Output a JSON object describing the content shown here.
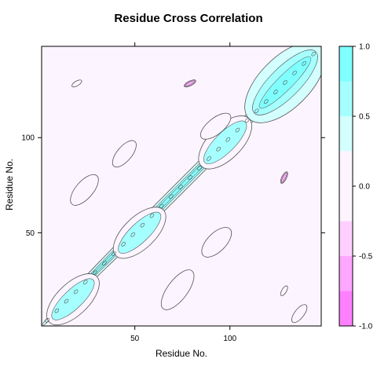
{
  "chart_data": {
    "type": "contour",
    "title": "Residue Cross Correlation",
    "xlabel": "Residue No.",
    "ylabel": "Residue No.",
    "xlim": [
      1,
      148
    ],
    "ylim": [
      1,
      148
    ],
    "xticks": [
      50,
      100
    ],
    "yticks": [
      50,
      100
    ],
    "colorbar": {
      "breaks": [
        -1.0,
        -0.75,
        -0.5,
        -0.25,
        0.25,
        0.5,
        0.75,
        1.0
      ],
      "colors": [
        "#ff80ff",
        "#ffa6ff",
        "#ffd0ff",
        "#fcf5ff",
        "#d4ffff",
        "#a6ffff",
        "#80ffff"
      ],
      "ticks": [
        -1.0,
        -0.5,
        0.0,
        0.5,
        1.0
      ],
      "tick_labels": [
        "-1.0",
        "-0.5",
        "0.0",
        "0.5",
        "1.0"
      ]
    },
    "background_value": 0.0,
    "positive_regions": [
      {
        "name": "diagonal",
        "x": [
          1,
          148
        ],
        "y": [
          1,
          148
        ],
        "level": 1.0
      },
      {
        "name": "anti-diagonal-15",
        "x": [
          5,
          30
        ],
        "y": [
          3,
          27
        ],
        "level": 0.5
      },
      {
        "name": "anti-diagonal-50",
        "x": [
          40,
          65
        ],
        "y": [
          38,
          62
        ],
        "level": 0.5
      },
      {
        "name": "anti-diagonal-100",
        "x": [
          85,
          110
        ],
        "y": [
          85,
          110
        ],
        "level": 0.5
      },
      {
        "name": "upper-right-band",
        "x": [
          110,
          148
        ],
        "y": [
          110,
          148
        ],
        "level": 0.75
      },
      {
        "name": "cluster-18-75",
        "x": [
          17,
          30
        ],
        "y": [
          65,
          80
        ],
        "level": 0.25
      },
      {
        "name": "cluster-40-93",
        "x": [
          39,
          50
        ],
        "y": [
          85,
          98
        ],
        "level": 0.25
      },
      {
        "name": "cluster-90-105",
        "x": [
          85,
          100
        ],
        "y": [
          100,
          112
        ],
        "level": 0.25
      },
      {
        "name": "cluster-95-50",
        "x": [
          86,
          100
        ],
        "y": [
          38,
          52
        ],
        "level": 0.25
      },
      {
        "name": "cluster-65-25",
        "x": [
          65,
          80
        ],
        "y": [
          10,
          30
        ],
        "level": 0.25
      },
      {
        "name": "cluster-138-10",
        "x": [
          133,
          140
        ],
        "y": [
          3,
          12
        ],
        "level": 0.25
      }
    ],
    "negative_regions": [
      {
        "name": "neg-128-80",
        "x": [
          127,
          130
        ],
        "y": [
          76,
          82
        ],
        "level": -0.5
      },
      {
        "name": "neg-80-128",
        "x": [
          76,
          82
        ],
        "y": [
          127,
          130
        ],
        "level": -0.5
      },
      {
        "name": "neg-20-128",
        "x": [
          17,
          22
        ],
        "y": [
          127,
          130
        ],
        "level": -0.25
      },
      {
        "name": "neg-128-20",
        "x": [
          127,
          130
        ],
        "y": [
          17,
          22
        ],
        "level": -0.25
      }
    ]
  }
}
